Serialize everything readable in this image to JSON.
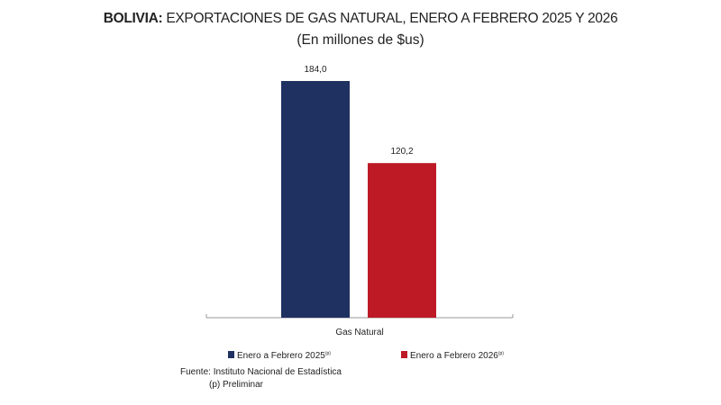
{
  "chart_data": {
    "type": "bar",
    "title_bold": "BOLIVIA:",
    "title": "EXPORTACIONES DE GAS NATURAL, ENERO A FEBRERO 2025 Y 2026",
    "subtitle": "(En millones de $us)",
    "categories": [
      "Gas Natural"
    ],
    "series": [
      {
        "name": "Enero  a Febrero 2025",
        "superscript": "(p)",
        "values": [
          184.0
        ],
        "label": "184,0",
        "color": "#1f3160"
      },
      {
        "name": "Enero a Febrero 2026",
        "superscript": "(p)",
        "values": [
          120.2
        ],
        "label": "120,2",
        "color": "#bd1a26"
      }
    ],
    "ylim": [
      0,
      184.0
    ],
    "grid": false,
    "legend": "bottom",
    "source": "Fuente: Instituto Nacional de Estadística",
    "note": "(p) Preliminar"
  }
}
